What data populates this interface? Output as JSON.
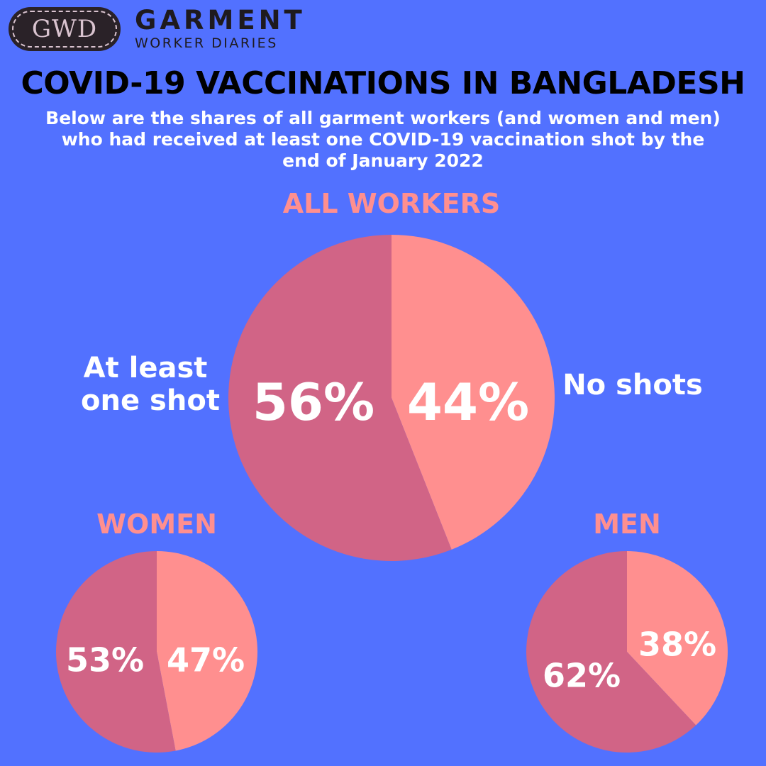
{
  "header": {
    "logo_letters": "GWD",
    "brand_line1": "GARMENT",
    "brand_line2": "WORKER DIARIES"
  },
  "title": "COVID-19 VACCINATIONS IN BANGLADESH",
  "subtitle": "Below are the shares of all garment workers (and women and men)\nwho had received at least one COVID-19 vaccination shot by the\nend of January 2022",
  "colors": {
    "background": "#5271ff",
    "at_least_one_shot": "#d16486",
    "no_shots": "#ff8f8f",
    "heading": "#ff8f8f"
  },
  "chart_data": [
    {
      "type": "pie",
      "title": "ALL WORKERS",
      "slices": [
        {
          "name": "No shots",
          "value": 44,
          "label": "44%",
          "color": "#ff8f8f"
        },
        {
          "name": "At least one shot",
          "value": 56,
          "label": "56%",
          "color": "#d16486"
        }
      ],
      "outer_labels": [
        "At least\none shot",
        "No shots"
      ]
    },
    {
      "type": "pie",
      "title": "WOMEN",
      "slices": [
        {
          "value": 47,
          "label": "47%",
          "color": "#ff8f8f"
        },
        {
          "value": 53,
          "label": "53%",
          "color": "#d16486"
        }
      ]
    },
    {
      "type": "pie",
      "title": "MEN",
      "slices": [
        {
          "value": 38,
          "label": "38%",
          "color": "#ff8f8f"
        },
        {
          "value": 62,
          "label": "62%",
          "color": "#d16486"
        }
      ]
    }
  ]
}
